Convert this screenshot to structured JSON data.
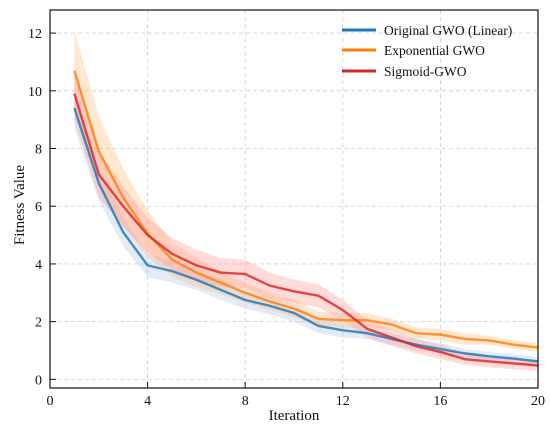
{
  "chart_data": {
    "type": "line",
    "xlabel": "Iteration",
    "ylabel": "Fitness Value",
    "xlim": [
      0,
      20
    ],
    "ylim": [
      -0.3,
      12.8
    ],
    "x_ticks": [
      0,
      4,
      8,
      12,
      16,
      20
    ],
    "y_ticks": [
      0,
      2,
      4,
      6,
      8,
      10,
      12
    ],
    "grid": true,
    "legend_position": "top-right",
    "x": [
      1,
      2,
      3,
      4,
      5,
      6,
      7,
      8,
      9,
      10,
      11,
      12,
      13,
      14,
      15,
      16,
      17,
      18,
      19,
      20
    ],
    "series": [
      {
        "name": "Original GWO (Linear)",
        "color": "#1f77b4",
        "band_color": "#aec7e8",
        "values": [
          9.4,
          6.8,
          5.1,
          3.95,
          3.75,
          3.45,
          3.1,
          2.75,
          2.55,
          2.3,
          1.85,
          1.7,
          1.6,
          1.4,
          1.2,
          1.05,
          0.9,
          0.8,
          0.72,
          0.62
        ],
        "band": [
          0.7,
          0.6,
          0.5,
          0.4,
          0.4,
          0.35,
          0.35,
          0.3,
          0.3,
          0.3,
          0.25,
          0.25,
          0.2,
          0.2,
          0.2,
          0.2,
          0.15,
          0.15,
          0.15,
          0.15
        ]
      },
      {
        "name": "Exponential GWO",
        "color": "#ff7f0e",
        "band_color": "#ffbb78",
        "values": [
          10.7,
          7.9,
          6.3,
          5.05,
          4.15,
          3.7,
          3.35,
          3.0,
          2.7,
          2.45,
          2.1,
          2.05,
          2.05,
          1.9,
          1.6,
          1.55,
          1.4,
          1.35,
          1.2,
          1.1
        ],
        "band": [
          1.4,
          1.2,
          1.0,
          0.8,
          0.6,
          0.5,
          0.4,
          0.35,
          0.3,
          0.3,
          0.25,
          0.25,
          0.25,
          0.2,
          0.2,
          0.2,
          0.2,
          0.15,
          0.15,
          0.15
        ]
      },
      {
        "name": "Sigmoid-GWO",
        "color": "#d62728",
        "band_color": "#ff9896",
        "values": [
          9.9,
          7.1,
          6.0,
          5.0,
          4.35,
          3.95,
          3.7,
          3.65,
          3.25,
          3.05,
          2.9,
          2.4,
          1.75,
          1.45,
          1.15,
          0.95,
          0.7,
          0.62,
          0.55,
          0.48
        ],
        "band": [
          0.9,
          0.8,
          0.7,
          0.6,
          0.55,
          0.55,
          0.5,
          0.5,
          0.45,
          0.4,
          0.4,
          0.35,
          0.3,
          0.3,
          0.25,
          0.25,
          0.2,
          0.2,
          0.2,
          0.2
        ]
      }
    ]
  }
}
